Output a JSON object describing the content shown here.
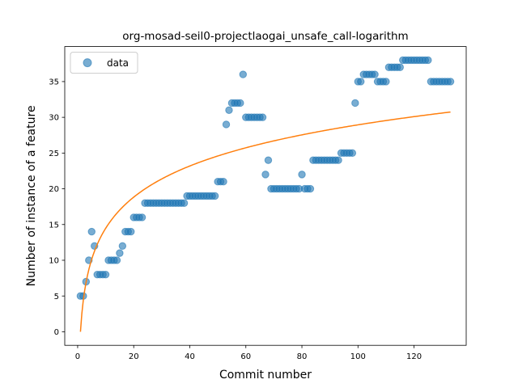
{
  "chart_data": {
    "type": "scatter",
    "title": "org-mosad-seil0-projectlaogai_unsafe_call-logarithm",
    "xlabel": "Commit number",
    "ylabel": "Number of instance of a feature",
    "xlim": [
      -4.6,
      138.6
    ],
    "ylim": [
      -1.9,
      39.9
    ],
    "xticks": [
      0,
      20,
      40,
      60,
      80,
      100,
      120
    ],
    "yticks": [
      0,
      5,
      10,
      15,
      20,
      25,
      30,
      35
    ],
    "legend": {
      "placement": "top-left",
      "entries": [
        {
          "label": "data"
        }
      ]
    },
    "colors": {
      "data": "#1f77b4",
      "fit": "#ff7f0e"
    },
    "fit_model": {
      "type": "logarithm",
      "a": 6.286,
      "b": 0.0,
      "x_range": [
        1,
        133
      ]
    },
    "series": [
      {
        "name": "data",
        "x": [
          1,
          2,
          3,
          4,
          5,
          6,
          7,
          8,
          9,
          10,
          11,
          12,
          13,
          14,
          15,
          16,
          17,
          18,
          19,
          20,
          21,
          22,
          23,
          24,
          25,
          26,
          27,
          28,
          29,
          30,
          31,
          32,
          33,
          34,
          35,
          36,
          37,
          38,
          39,
          40,
          41,
          42,
          43,
          44,
          45,
          46,
          47,
          48,
          49,
          50,
          51,
          52,
          53,
          54,
          55,
          56,
          57,
          58,
          59,
          60,
          61,
          62,
          63,
          64,
          65,
          66,
          67,
          68,
          69,
          70,
          71,
          72,
          73,
          74,
          75,
          76,
          77,
          78,
          79,
          80,
          81,
          82,
          83,
          84,
          85,
          86,
          87,
          88,
          89,
          90,
          91,
          92,
          93,
          94,
          95,
          96,
          97,
          98,
          99,
          100,
          101,
          102,
          103,
          104,
          105,
          106,
          107,
          108,
          109,
          110,
          111,
          112,
          113,
          114,
          115,
          116,
          117,
          118,
          119,
          120,
          121,
          122,
          123,
          124,
          125,
          126,
          127,
          128,
          129,
          130,
          131,
          132,
          133
        ],
        "y": [
          5,
          5,
          7,
          10,
          14,
          12,
          8,
          8,
          8,
          8,
          10,
          10,
          10,
          10,
          11,
          12,
          14,
          14,
          14,
          16,
          16,
          16,
          16,
          18,
          18,
          18,
          18,
          18,
          18,
          18,
          18,
          18,
          18,
          18,
          18,
          18,
          18,
          18,
          19,
          19,
          19,
          19,
          19,
          19,
          19,
          19,
          19,
          19,
          19,
          21,
          21,
          21,
          29,
          31,
          32,
          32,
          32,
          32,
          36,
          30,
          30,
          30,
          30,
          30,
          30,
          30,
          22,
          24,
          20,
          20,
          20,
          20,
          20,
          20,
          20,
          20,
          20,
          20,
          20,
          22,
          20,
          20,
          20,
          24,
          24,
          24,
          24,
          24,
          24,
          24,
          24,
          24,
          24,
          25,
          25,
          25,
          25,
          25,
          32,
          35,
          35,
          36,
          36,
          36,
          36,
          36,
          35,
          35,
          35,
          35,
          37,
          37,
          37,
          37,
          37,
          38,
          38,
          38,
          38,
          38,
          38,
          38,
          38,
          38,
          38,
          35,
          35,
          35,
          35,
          35,
          35,
          35,
          35
        ]
      }
    ]
  }
}
